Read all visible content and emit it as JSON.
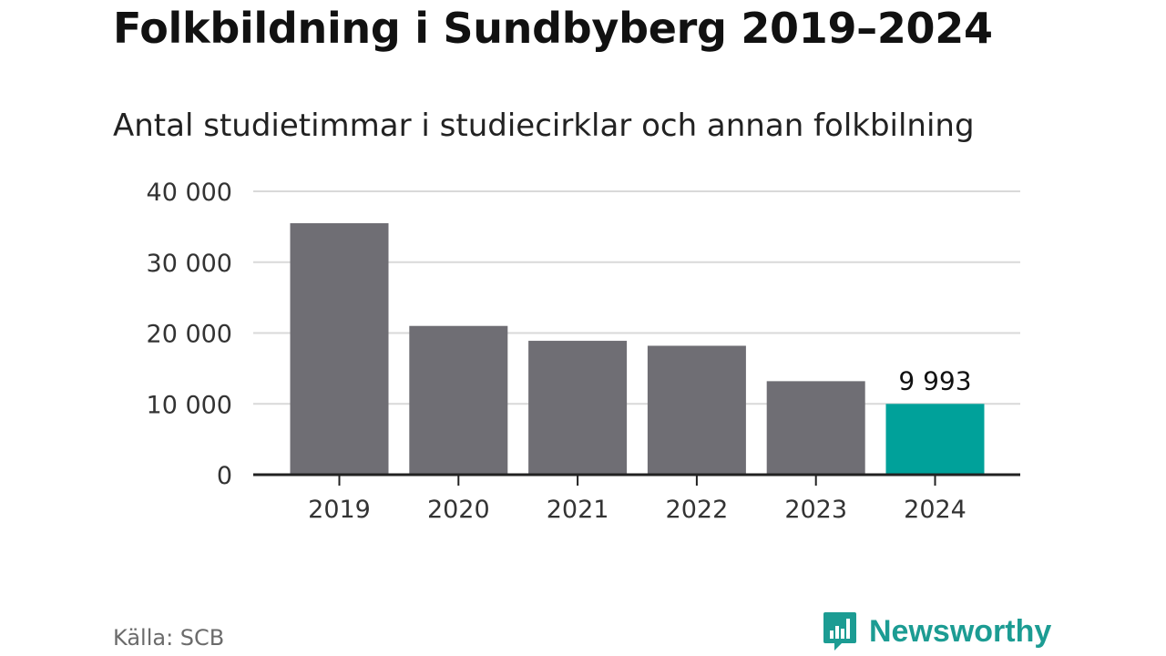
{
  "header": {
    "title": "Folkbildning i Sundbyberg 2019–2024",
    "subtitle": "Antal studietimmar i studiecirklar och annan folkbilning"
  },
  "footer": {
    "source": "Källa: SCB",
    "brand": "Newsworthy",
    "brand_icon": "bar-chart-speech-bubble-icon"
  },
  "colors": {
    "bar": "#6f6e74",
    "highlight": "#00a19a",
    "grid": "#d9d9d9",
    "axis": "#222222",
    "brand": "#1c9c93"
  },
  "chart_data": {
    "type": "bar",
    "title": "Folkbildning i Sundbyberg 2019–2024",
    "subtitle": "Antal studietimmar i studiecirklar och annan folkbilning",
    "categories": [
      "2019",
      "2020",
      "2021",
      "2022",
      "2023",
      "2024"
    ],
    "values": [
      35500,
      21000,
      18900,
      18200,
      13200,
      9993
    ],
    "highlight_index": 5,
    "data_labels": [
      {
        "index": 5,
        "text": "9 993"
      }
    ],
    "ylim": [
      0,
      40000
    ],
    "yticks": [
      0,
      10000,
      20000,
      30000,
      40000
    ],
    "ytick_labels": [
      "0",
      "10 000",
      "20 000",
      "30 000",
      "40 000"
    ],
    "xlabel": "",
    "ylabel": "",
    "grid": true,
    "legend": "none"
  }
}
